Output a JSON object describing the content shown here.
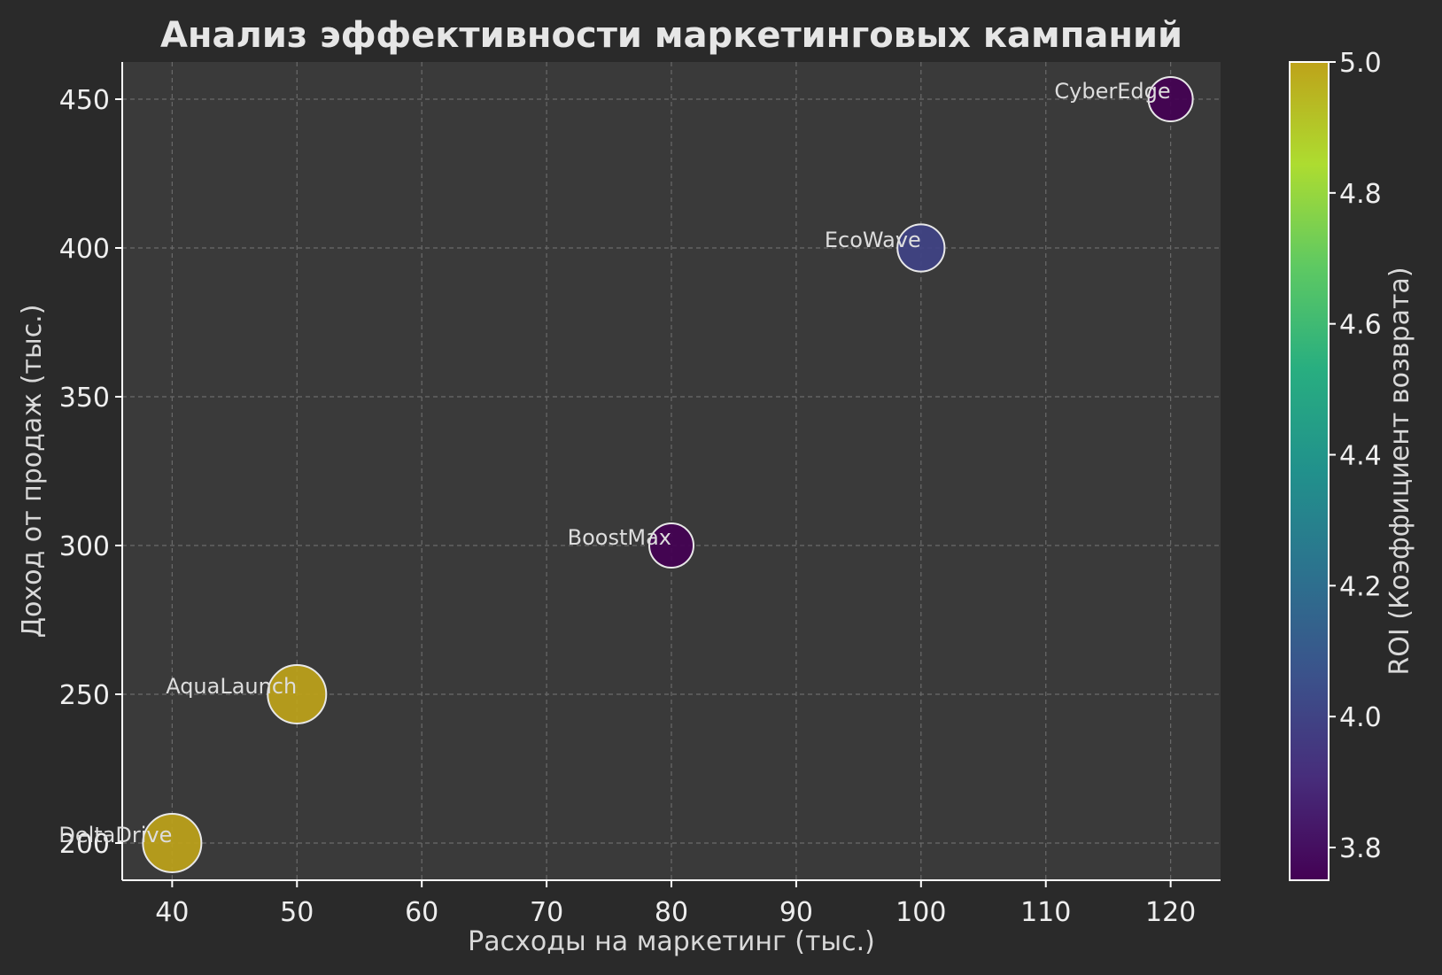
{
  "chart_data": {
    "type": "scatter",
    "title": "Анализ эффективности маркетинговых кампаний",
    "xlabel": "Расходы на маркетинг (тыс.)",
    "ylabel": "Доход от продаж (тыс.)",
    "colorbar_label": "ROI (Коэффициент возврата)",
    "xlim": [
      36,
      124
    ],
    "ylim": [
      187.5,
      462.5
    ],
    "xticks": [
      40,
      50,
      60,
      70,
      80,
      90,
      100,
      110,
      120
    ],
    "yticks": [
      200,
      250,
      300,
      350,
      400,
      450
    ],
    "colorbar_range": [
      3.75,
      5.0
    ],
    "colorbar_ticks": [
      "3.8",
      "4.0",
      "4.2",
      "4.4",
      "4.6",
      "4.8",
      "5.0"
    ],
    "colormap": "viridis",
    "grid": true,
    "points": [
      {
        "label": "DeltaDrive",
        "x": 40,
        "y": 200,
        "roi": 5.0
      },
      {
        "label": "AquaLaunch",
        "x": 50,
        "y": 250,
        "roi": 5.0
      },
      {
        "label": "BoostMax",
        "x": 80,
        "y": 300,
        "roi": 3.75
      },
      {
        "label": "EcoWave",
        "x": 100,
        "y": 400,
        "roi": 4.0
      },
      {
        "label": "CyberEdge",
        "x": 120,
        "y": 450,
        "roi": 3.75
      }
    ]
  },
  "colors": {
    "figure_bg": "#2a2a2a",
    "axes_bg": "#3a3a3a",
    "grid": "#6a6a6a",
    "axis": "#ffffff",
    "text": "#e6e6e6"
  }
}
